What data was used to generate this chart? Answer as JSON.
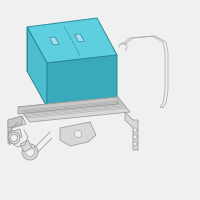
{
  "bg_color": "#f0f0f0",
  "battery_fill_top": "#5ecfdf",
  "battery_fill_front": "#4bbdcd",
  "battery_fill_right": "#38aaba",
  "battery_stroke": "#2a8a9a",
  "part_stroke": "#999999",
  "part_fill": "#d8d8d8",
  "part_fill2": "#c8c8c8",
  "wire_color": "#aaaaaa",
  "figsize": [
    2.0,
    2.0
  ],
  "dpi": 100
}
